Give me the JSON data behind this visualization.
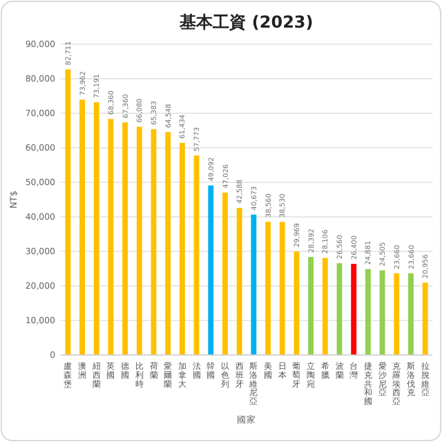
{
  "chart_data": {
    "type": "bar",
    "title": "基本工資 (2023)",
    "xlabel": "國家",
    "ylabel": "NT$",
    "categories": [
      "盧森堡",
      "澳洲",
      "紐西蘭",
      "英國",
      "德國",
      "比利時",
      "荷蘭",
      "愛爾蘭",
      "加拿大",
      "法國",
      "韓國",
      "以色列",
      "西班牙",
      "斯洛維尼亞",
      "美國",
      "日本",
      "葡萄牙",
      "立陶宛",
      "希臘",
      "波蘭",
      "台灣",
      "捷克共和國",
      "愛沙尼亞",
      "克羅埃西亞",
      "斯洛伐克",
      "拉脫維亞"
    ],
    "values": [
      82711,
      73962,
      73191,
      68360,
      67360,
      66080,
      65383,
      64548,
      61434,
      57773,
      49092,
      47026,
      42588,
      40673,
      38560,
      38530,
      29969,
      28392,
      28106,
      26560,
      26400,
      24881,
      24505,
      23660,
      23660,
      20956
    ],
    "value_labels": [
      "82,711",
      "73,962",
      "73,191",
      "68,360",
      "67,360",
      "66,080",
      "65,383",
      "64,548",
      "61,434",
      "57,773",
      "49,092",
      "47,026",
      "42,588",
      "40,673",
      "38,560",
      "38,530",
      "29,969",
      "28,392",
      "28,106",
      "26,560",
      "26,400",
      "24,881",
      "24,505",
      "23,660",
      "23,660",
      "20,956"
    ],
    "colors": [
      "#ffc000",
      "#ffc000",
      "#ffc000",
      "#ffc000",
      "#ffc000",
      "#ffc000",
      "#ffc000",
      "#ffc000",
      "#ffc000",
      "#ffc000",
      "#00b0f0",
      "#ffc000",
      "#ffc000",
      "#00b0f0",
      "#ffc000",
      "#ffc000",
      "#ffc000",
      "#92d050",
      "#ffc000",
      "#92d050",
      "#ff0000",
      "#92d050",
      "#92d050",
      "#ffc000",
      "#92d050",
      "#ffc000"
    ],
    "ylim": [
      0,
      90000
    ],
    "yticks": [
      {
        "value": 0,
        "label": "0"
      },
      {
        "value": 10000,
        "label": "10,000"
      },
      {
        "value": 20000,
        "label": "20,000"
      },
      {
        "value": 30000,
        "label": "30,000"
      },
      {
        "value": 40000,
        "label": "40,000"
      },
      {
        "value": 50000,
        "label": "50,000"
      },
      {
        "value": 60000,
        "label": "60,000"
      },
      {
        "value": 70000,
        "label": "70,000"
      },
      {
        "value": 80000,
        "label": "80,000"
      },
      {
        "value": 90000,
        "label": "90,000"
      }
    ],
    "grid": "y"
  }
}
